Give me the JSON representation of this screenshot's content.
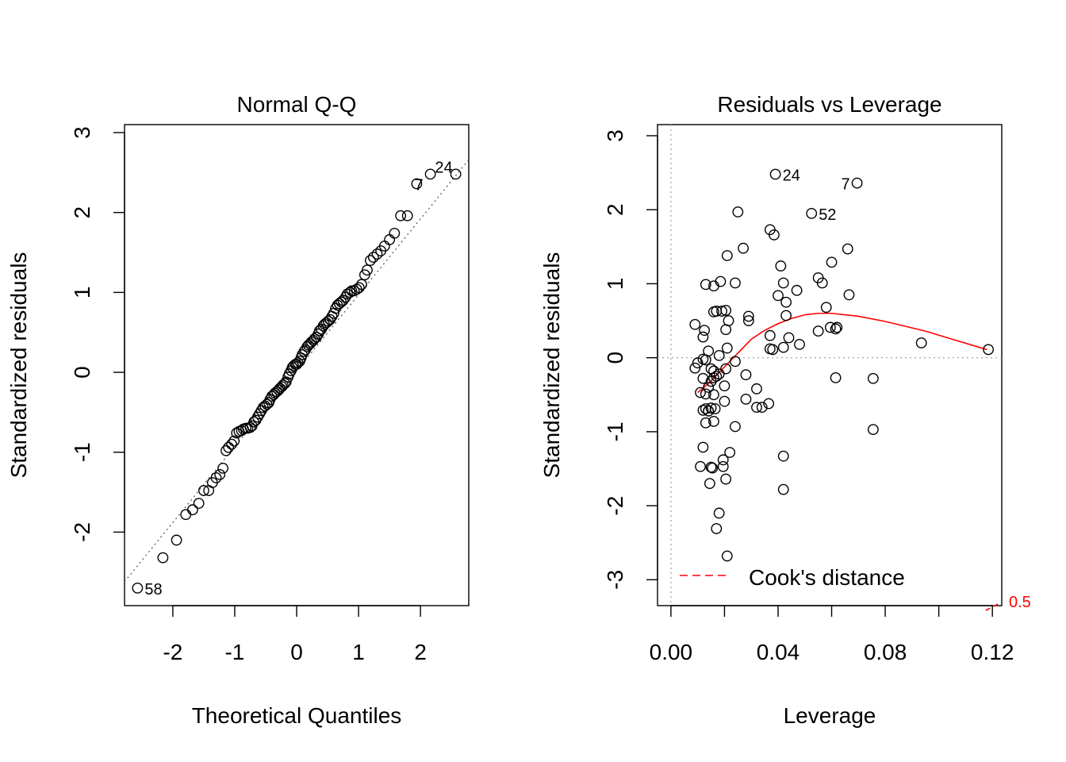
{
  "chart_data": [
    {
      "type": "scatter",
      "title": "Normal Q-Q",
      "xlabel": "Theoretical Quantiles",
      "ylabel": "Standardized residuals",
      "xlim": [
        -2.78,
        2.78
      ],
      "ylim": [
        -2.92,
        3.1
      ],
      "xticks": [
        -2,
        -1,
        0,
        1,
        2
      ],
      "yticks": [
        -2,
        -1,
        0,
        1,
        2,
        3
      ],
      "xtick_labels": [
        "-2",
        "-1",
        "0",
        "1",
        "2"
      ],
      "ytick_labels": [
        "-2",
        "-1",
        "0",
        "1",
        "2",
        "3"
      ],
      "reference_line": {
        "style": "dotted",
        "color": "#666666",
        "intercept": 0.02,
        "slope": 0.95
      },
      "labeled_points": [
        {
          "label": "24",
          "x": 2.57,
          "y": 2.48
        },
        {
          "label": "7",
          "x": 2.16,
          "y": 2.36
        },
        {
          "label": "58",
          "x": -2.57,
          "y": -2.7
        }
      ],
      "x": [
        -2.57,
        -2.16,
        -1.94,
        -1.79,
        -1.68,
        -1.58,
        -1.5,
        -1.42,
        -1.36,
        -1.3,
        -1.24,
        -1.19,
        -1.14,
        -1.1,
        -1.05,
        -1.01,
        -0.97,
        -0.93,
        -0.89,
        -0.86,
        -0.82,
        -0.79,
        -0.75,
        -0.72,
        -0.69,
        -0.66,
        -0.63,
        -0.6,
        -0.57,
        -0.54,
        -0.51,
        -0.48,
        -0.45,
        -0.43,
        -0.4,
        -0.37,
        -0.35,
        -0.32,
        -0.29,
        -0.27,
        -0.24,
        -0.22,
        -0.19,
        -0.17,
        -0.14,
        -0.12,
        -0.09,
        -0.07,
        -0.05,
        -0.02,
        0.0,
        0.02,
        0.05,
        0.07,
        0.09,
        0.12,
        0.14,
        0.17,
        0.19,
        0.22,
        0.24,
        0.27,
        0.29,
        0.32,
        0.35,
        0.37,
        0.4,
        0.43,
        0.45,
        0.48,
        0.51,
        0.54,
        0.57,
        0.6,
        0.63,
        0.66,
        0.69,
        0.72,
        0.75,
        0.79,
        0.82,
        0.86,
        0.89,
        0.93,
        0.97,
        1.01,
        1.05,
        1.1,
        1.14,
        1.19,
        1.24,
        1.3,
        1.36,
        1.42,
        1.5,
        1.58,
        1.68,
        1.79,
        1.94,
        2.16,
        2.57
      ],
      "y": [
        -2.7,
        -2.32,
        -2.1,
        -1.78,
        -1.72,
        -1.64,
        -1.48,
        -1.48,
        -1.38,
        -1.32,
        -1.28,
        -1.2,
        -0.98,
        -0.94,
        -0.9,
        -0.86,
        -0.76,
        -0.74,
        -0.73,
        -0.71,
        -0.7,
        -0.7,
        -0.69,
        -0.67,
        -0.62,
        -0.6,
        -0.56,
        -0.52,
        -0.48,
        -0.44,
        -0.42,
        -0.4,
        -0.38,
        -0.34,
        -0.3,
        -0.28,
        -0.26,
        -0.24,
        -0.22,
        -0.2,
        -0.18,
        -0.16,
        -0.14,
        -0.12,
        -0.06,
        -0.02,
        0.02,
        0.06,
        0.08,
        0.1,
        0.1,
        0.12,
        0.14,
        0.18,
        0.22,
        0.26,
        0.28,
        0.32,
        0.34,
        0.36,
        0.38,
        0.4,
        0.42,
        0.44,
        0.48,
        0.52,
        0.54,
        0.58,
        0.6,
        0.62,
        0.64,
        0.66,
        0.7,
        0.74,
        0.8,
        0.84,
        0.86,
        0.88,
        0.9,
        0.94,
        0.98,
        1.0,
        1.02,
        1.02,
        1.04,
        1.06,
        1.1,
        1.22,
        1.28,
        1.4,
        1.44,
        1.48,
        1.52,
        1.58,
        1.66,
        1.74,
        1.96,
        1.96,
        2.36,
        2.48,
        2.48
      ]
    },
    {
      "type": "scatter",
      "title": "Residuals vs Leverage",
      "xlabel": "Leverage",
      "ylabel": "Standardized residuals",
      "xlim": [
        -0.005,
        0.1235
      ],
      "ylim": [
        -3.35,
        3.15
      ],
      "xticks": [
        0.0,
        0.04,
        0.08,
        0.12
      ],
      "yticks": [
        -3,
        -2,
        -1,
        0,
        1,
        2,
        3
      ],
      "xtick_labels": [
        "0.00",
        "0.04",
        "0.08",
        "0.12"
      ],
      "ytick_labels": [
        "-3",
        "-2",
        "-1",
        "0",
        "1",
        "2",
        "3"
      ],
      "zero_line": {
        "style": "dotted",
        "color": "#aaaaaa"
      },
      "smooth_line": {
        "color": "#ff0000",
        "x": [
          0.01,
          0.014,
          0.018,
          0.022,
          0.026,
          0.03,
          0.035,
          0.04,
          0.045,
          0.05,
          0.055,
          0.06,
          0.07,
          0.08,
          0.095,
          0.105,
          0.118
        ],
        "y": [
          -0.47,
          -0.35,
          -0.2,
          -0.05,
          0.1,
          0.25,
          0.37,
          0.46,
          0.53,
          0.58,
          0.6,
          0.6,
          0.56,
          0.49,
          0.36,
          0.25,
          0.11
        ]
      },
      "cooks_distance": {
        "legend_label": "Cook's distance",
        "contour_label": "0.5",
        "color": "#ff0000",
        "style": "dashed",
        "legend_position": "bottom-left"
      },
      "labeled_points": [
        {
          "label": "24",
          "x": 0.039,
          "y": 2.48
        },
        {
          "label": "7",
          "x": 0.0695,
          "y": 2.36
        },
        {
          "label": "52",
          "x": 0.0525,
          "y": 1.95
        }
      ],
      "x": [
        0.039,
        0.0695,
        0.0525,
        0.025,
        0.037,
        0.0385,
        0.027,
        0.021,
        0.041,
        0.055,
        0.06,
        0.066,
        0.0565,
        0.058,
        0.013,
        0.0185,
        0.016,
        0.024,
        0.042,
        0.047,
        0.043,
        0.04,
        0.0595,
        0.0665,
        0.043,
        0.044,
        0.017,
        0.019,
        0.016,
        0.0205,
        0.0215,
        0.029,
        0.029,
        0.009,
        0.0125,
        0.0205,
        0.037,
        0.012,
        0.055,
        0.0615,
        0.062,
        0.0935,
        0.1185,
        0.014,
        0.038,
        0.042,
        0.048,
        0.037,
        0.021,
        0.018,
        0.01,
        0.012,
        0.013,
        0.015,
        0.024,
        0.009,
        0.015,
        0.0615,
        0.012,
        0.0755,
        0.018,
        0.017,
        0.016,
        0.02,
        0.028,
        0.0205,
        0.016,
        0.014,
        0.032,
        0.028,
        0.011,
        0.02,
        0.016,
        0.015,
        0.014,
        0.013,
        0.012,
        0.032,
        0.034,
        0.0365,
        0.0755,
        0.0165,
        0.013,
        0.024,
        0.042,
        0.012,
        0.0195,
        0.0155,
        0.022,
        0.0195,
        0.0145,
        0.0205,
        0.042,
        0.018,
        0.017,
        0.015,
        0.021,
        0.013,
        0.016,
        0.011,
        0.014
      ],
      "y": [
        2.48,
        2.36,
        1.95,
        1.97,
        1.73,
        1.66,
        1.48,
        1.38,
        1.24,
        1.08,
        1.29,
        1.47,
        1.01,
        0.68,
        0.99,
        1.03,
        0.97,
        1.01,
        1.01,
        0.91,
        0.75,
        0.84,
        0.41,
        0.85,
        0.57,
        0.27,
        0.63,
        0.63,
        0.62,
        0.64,
        0.5,
        0.56,
        0.5,
        0.45,
        0.37,
        0.38,
        0.3,
        0.28,
        0.36,
        0.39,
        0.41,
        0.2,
        0.11,
        0.09,
        0.11,
        0.14,
        0.18,
        0.12,
        0.13,
        0.03,
        -0.07,
        -0.02,
        -0.03,
        -0.15,
        -0.05,
        -0.14,
        -0.32,
        -0.27,
        -0.28,
        -0.28,
        -0.22,
        -0.25,
        -0.18,
        -0.38,
        -0.23,
        -0.15,
        -0.27,
        -0.4,
        -0.42,
        -0.56,
        -0.47,
        -0.59,
        -0.5,
        -0.68,
        -0.72,
        -0.69,
        -0.71,
        -0.67,
        -0.67,
        -0.62,
        -0.97,
        -0.69,
        -0.88,
        -0.93,
        -1.33,
        -1.21,
        -1.38,
        -1.49,
        -1.28,
        -1.47,
        -1.7,
        -1.64,
        -1.78,
        -2.1,
        -2.31,
        -1.48,
        -2.68,
        -0.49,
        -0.86,
        -1.47,
        -0.72
      ]
    }
  ]
}
